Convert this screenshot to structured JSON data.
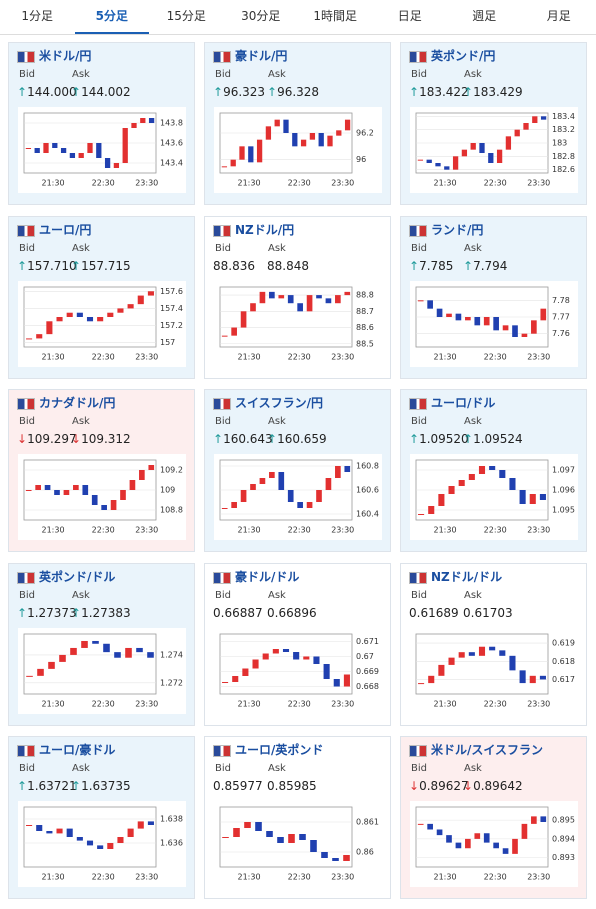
{
  "tabs": [
    "1分足",
    "5分足",
    "15分足",
    "30分足",
    "1時間足",
    "日足",
    "週足",
    "月足"
  ],
  "bid_label": "Bid",
  "ask_label": "Ask",
  "tiles": [
    {
      "name": "米ドル/円",
      "bid": "144.000",
      "ask": "144.002",
      "arrow": "↑",
      "chart": {
        "type": "candlestick",
        "ylim": [
          143.3,
          143.9
        ],
        "yticks": [
          143.4,
          143.6,
          143.8
        ],
        "xticks": [
          "21:30",
          "22:30",
          "23:30"
        ],
        "values": [
          143.55,
          143.5,
          143.6,
          143.55,
          143.5,
          143.45,
          143.5,
          143.6,
          143.45,
          143.35,
          143.4,
          143.75,
          143.8,
          143.85,
          143.8
        ]
      }
    },
    {
      "name": "豪ドル/円",
      "bid": "96.323",
      "ask": "96.328",
      "arrow": "↑",
      "chart": {
        "type": "candlestick",
        "ylim": [
          95.9,
          96.35
        ],
        "yticks": [
          96,
          96.2
        ],
        "xticks": [
          "21:30",
          "22:30",
          "23:30"
        ],
        "values": [
          95.95,
          96.0,
          96.1,
          95.98,
          96.15,
          96.25,
          96.3,
          96.2,
          96.1,
          96.15,
          96.2,
          96.1,
          96.18,
          96.22,
          96.3
        ]
      }
    },
    {
      "name": "英ポンド/円",
      "bid": "183.422",
      "ask": "183.429",
      "arrow": "↑",
      "chart": {
        "type": "candlestick",
        "ylim": [
          182.55,
          183.45
        ],
        "yticks": [
          182.6,
          182.8,
          183,
          183.2,
          183.4
        ],
        "xticks": [
          "21:30",
          "22:30",
          "23:30"
        ],
        "values": [
          182.75,
          182.7,
          182.65,
          182.6,
          182.8,
          182.9,
          183.0,
          182.85,
          182.7,
          182.9,
          183.1,
          183.2,
          183.3,
          183.4,
          183.35
        ]
      }
    },
    {
      "name": "ユーロ/円",
      "bid": "157.710",
      "ask": "157.715",
      "arrow": "↑",
      "chart": {
        "type": "candlestick",
        "ylim": [
          156.95,
          157.65
        ],
        "yticks": [
          157,
          157.2,
          157.4,
          157.6
        ],
        "xticks": [
          "21:30",
          "22:30",
          "23:30"
        ],
        "values": [
          157.05,
          157.1,
          157.25,
          157.3,
          157.35,
          157.3,
          157.25,
          157.3,
          157.35,
          157.4,
          157.45,
          157.55,
          157.6
        ]
      }
    },
    {
      "name": "NZドル/円",
      "bid": "88.836",
      "ask": "88.848",
      "chart": {
        "type": "candlestick",
        "ylim": [
          88.48,
          88.85
        ],
        "yticks": [
          88.5,
          88.6,
          88.7,
          88.8
        ],
        "xticks": [
          "21:30",
          "22:30",
          "23:30"
        ],
        "values": [
          88.55,
          88.6,
          88.7,
          88.75,
          88.82,
          88.78,
          88.8,
          88.75,
          88.7,
          88.8,
          88.78,
          88.75,
          88.8,
          88.82
        ]
      }
    },
    {
      "name": "ランド/円",
      "bid": "7.785",
      "ask": "7.794",
      "arrow": "↑",
      "chart": {
        "type": "candlestick",
        "ylim": [
          7.752,
          7.788
        ],
        "yticks": [
          7.76,
          7.77,
          7.78
        ],
        "xticks": [
          "21:30",
          "22:30",
          "23:30"
        ],
        "values": [
          7.78,
          7.775,
          7.77,
          7.772,
          7.768,
          7.77,
          7.765,
          7.77,
          7.762,
          7.765,
          7.758,
          7.76,
          7.768,
          7.775
        ]
      }
    },
    {
      "name": "カナダドル/円",
      "bid": "109.297",
      "ask": "109.312",
      "arrow": "↓",
      "chart": {
        "type": "candlestick",
        "ylim": [
          108.7,
          109.3
        ],
        "yticks": [
          108.8,
          109,
          109.2
        ],
        "xticks": [
          "21:30",
          "22:30",
          "23:30"
        ],
        "values": [
          109.0,
          109.05,
          109.0,
          108.95,
          109.0,
          109.05,
          108.95,
          108.85,
          108.8,
          108.9,
          109.0,
          109.1,
          109.2,
          109.25
        ]
      }
    },
    {
      "name": "スイスフラン/円",
      "bid": "160.643",
      "ask": "160.659",
      "arrow": "↑",
      "chart": {
        "type": "candlestick",
        "ylim": [
          160.35,
          160.85
        ],
        "yticks": [
          160.4,
          160.6,
          160.8
        ],
        "xticks": [
          "21:30",
          "22:30",
          "23:30"
        ],
        "values": [
          160.45,
          160.5,
          160.6,
          160.65,
          160.7,
          160.75,
          160.6,
          160.5,
          160.45,
          160.5,
          160.6,
          160.7,
          160.8,
          160.75
        ]
      }
    },
    {
      "name": "ユーロ/ドル",
      "bid": "1.09520",
      "ask": "1.09524",
      "arrow": "↑",
      "chart": {
        "type": "candlestick",
        "ylim": [
          1.0945,
          1.0975
        ],
        "yticks": [
          1.095,
          1.096,
          1.097
        ],
        "xticks": [
          "21:30",
          "22:30",
          "23:30"
        ],
        "values": [
          1.0948,
          1.0952,
          1.0958,
          1.0962,
          1.0965,
          1.0968,
          1.0972,
          1.097,
          1.0966,
          1.096,
          1.0953,
          1.0958,
          1.0955
        ]
      }
    },
    {
      "name": "英ポンド/ドル",
      "bid": "1.27373",
      "ask": "1.27383",
      "arrow": "↑",
      "chart": {
        "type": "candlestick",
        "ylim": [
          1.2712,
          1.2755
        ],
        "yticks": [
          1.272,
          1.274
        ],
        "xticks": [
          "21:30",
          "22:30",
          "23:30"
        ],
        "values": [
          1.2725,
          1.273,
          1.2735,
          1.274,
          1.2745,
          1.275,
          1.2748,
          1.2742,
          1.2738,
          1.2745,
          1.2742,
          1.2738
        ]
      }
    },
    {
      "name": "豪ドル/ドル",
      "bid": "0.66887",
      "ask": "0.66896",
      "chart": {
        "type": "candlestick",
        "ylim": [
          0.6675,
          0.6715
        ],
        "yticks": [
          0.668,
          0.669,
          0.67,
          0.671
        ],
        "xticks": [
          "21:30",
          "22:30",
          "23:30"
        ],
        "values": [
          0.6683,
          0.6687,
          0.6692,
          0.6698,
          0.6702,
          0.6705,
          0.6703,
          0.6698,
          0.67,
          0.6695,
          0.6685,
          0.668,
          0.6688
        ]
      }
    },
    {
      "name": "NZドル/ドル",
      "bid": "0.61689",
      "ask": "0.61703",
      "chart": {
        "type": "candlestick",
        "ylim": [
          0.6162,
          0.6195
        ],
        "yticks": [
          0.617,
          0.618,
          0.619
        ],
        "xticks": [
          "21:30",
          "22:30",
          "23:30"
        ],
        "values": [
          0.6168,
          0.6172,
          0.6178,
          0.6182,
          0.6185,
          0.6183,
          0.6188,
          0.6186,
          0.6183,
          0.6175,
          0.6168,
          0.6172,
          0.617
        ]
      }
    },
    {
      "name": "ユーロ/豪ドル",
      "bid": "1.63721",
      "ask": "1.63735",
      "arrow": "↑",
      "chart": {
        "type": "candlestick",
        "ylim": [
          1.634,
          1.639
        ],
        "yticks": [
          1.636,
          1.638
        ],
        "xticks": [
          "21:30",
          "22:30",
          "23:30"
        ],
        "values": [
          1.6375,
          1.637,
          1.6368,
          1.6372,
          1.6365,
          1.6362,
          1.6358,
          1.6355,
          1.636,
          1.6365,
          1.6372,
          1.6378,
          1.6375
        ]
      }
    },
    {
      "name": "ユーロ/英ポンド",
      "bid": "0.85977",
      "ask": "0.85985",
      "chart": {
        "type": "candlestick",
        "ylim": [
          0.8595,
          0.8615
        ],
        "yticks": [
          0.86,
          0.861
        ],
        "xticks": [
          "21:30",
          "22:30",
          "23:30"
        ],
        "values": [
          0.8605,
          0.8608,
          0.861,
          0.8607,
          0.8605,
          0.8603,
          0.8606,
          0.8604,
          0.86,
          0.8598,
          0.8597,
          0.8599
        ]
      }
    },
    {
      "name": "米ドル/スイスフラン",
      "bid": "0.89627",
      "ask": "0.89642",
      "arrow": "↓",
      "chart": {
        "type": "candlestick",
        "ylim": [
          0.8925,
          0.8957
        ],
        "yticks": [
          0.893,
          0.894,
          0.895
        ],
        "xticks": [
          "21:30",
          "22:30",
          "23:30"
        ],
        "values": [
          0.8948,
          0.8945,
          0.8942,
          0.8938,
          0.8935,
          0.894,
          0.8943,
          0.8938,
          0.8935,
          0.8932,
          0.894,
          0.8948,
          0.8952,
          0.8949
        ]
      }
    }
  ]
}
